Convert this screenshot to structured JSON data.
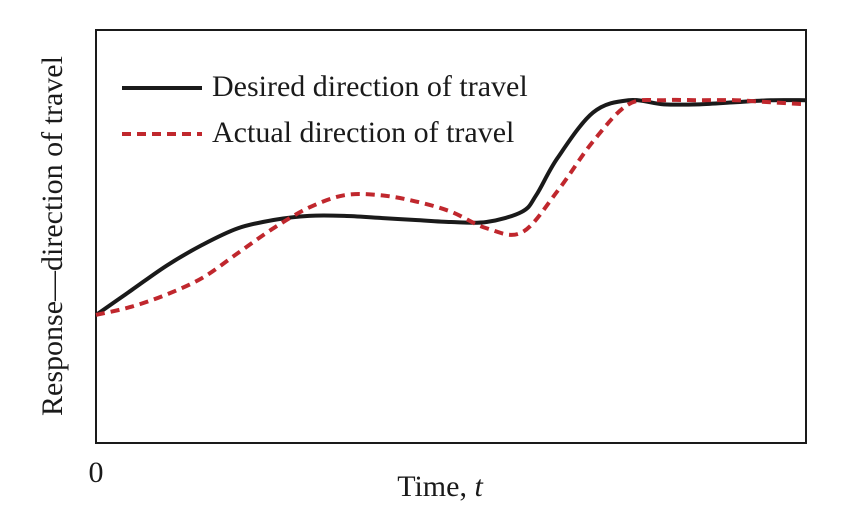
{
  "chart_data": {
    "type": "line",
    "title": "",
    "xlabel": "Time, ",
    "xlabel_var": "t",
    "ylabel": "Response—direction of travel",
    "x_tick_labels": [
      "0"
    ],
    "xlim": [
      0,
      1
    ],
    "ylim": [
      0,
      1
    ],
    "grid": false,
    "legend_position": "top-left",
    "series": [
      {
        "name": "Desired direction of travel",
        "style": "solid",
        "color": "#1a1a1a",
        "x": [
          0,
          0.05,
          0.1,
          0.15,
          0.2,
          0.25,
          0.3,
          0.35,
          0.4,
          0.45,
          0.5,
          0.55,
          0.6,
          0.62,
          0.65,
          0.7,
          0.75,
          0.8,
          0.85,
          0.9,
          0.95,
          1.0
        ],
        "y": [
          0.31,
          0.37,
          0.43,
          0.48,
          0.52,
          0.54,
          0.55,
          0.55,
          0.545,
          0.54,
          0.535,
          0.535,
          0.56,
          0.6,
          0.69,
          0.8,
          0.83,
          0.82,
          0.82,
          0.825,
          0.83,
          0.83
        ]
      },
      {
        "name": "Actual direction of travel",
        "style": "dashed",
        "color": "#c0272d",
        "x": [
          0,
          0.05,
          0.1,
          0.15,
          0.2,
          0.25,
          0.3,
          0.35,
          0.4,
          0.45,
          0.5,
          0.55,
          0.6,
          0.65,
          0.7,
          0.75,
          0.8,
          0.85,
          0.9,
          0.95,
          1.0
        ],
        "y": [
          0.31,
          0.33,
          0.36,
          0.4,
          0.46,
          0.52,
          0.57,
          0.6,
          0.6,
          0.585,
          0.56,
          0.52,
          0.51,
          0.61,
          0.73,
          0.82,
          0.83,
          0.83,
          0.83,
          0.825,
          0.82
        ]
      }
    ]
  }
}
